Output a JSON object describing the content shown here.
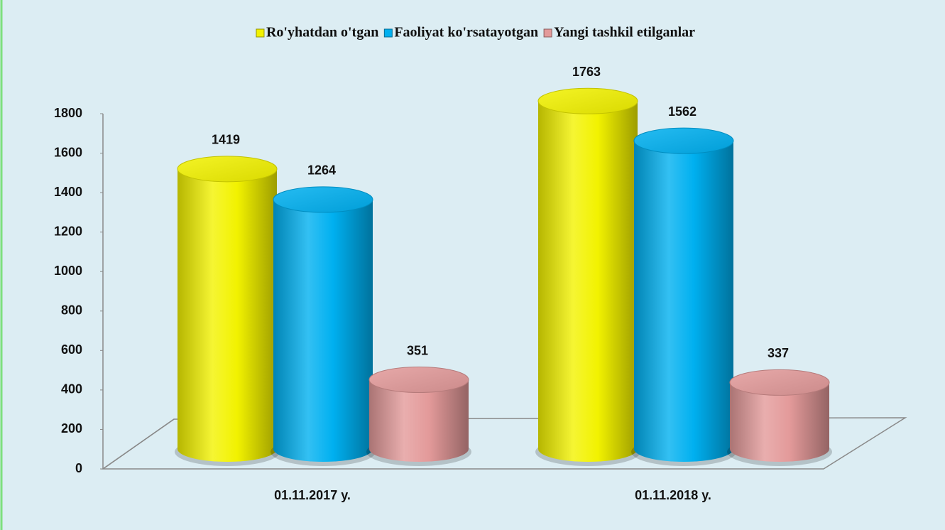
{
  "chart_data": {
    "type": "bar",
    "categories": [
      "01.11.2017 y.",
      "01.11.2018 y."
    ],
    "series": [
      {
        "name": "Ro'yhatdan o'tgan",
        "color": "#f2f200",
        "values": [
          1419,
          1763
        ]
      },
      {
        "name": "Faoliyat ko'rsatayotgan",
        "color": "#00b0f0",
        "values": [
          1264,
          1562
        ]
      },
      {
        "name": "Yangi tashkil etilganlar",
        "color": "#e39a9a",
        "values": [
          351,
          337
        ]
      }
    ],
    "ylim": [
      0,
      1800
    ],
    "yticks": [
      0,
      200,
      400,
      600,
      800,
      1000,
      1200,
      1400,
      1600,
      1800
    ],
    "grid": false,
    "legend": "top"
  }
}
